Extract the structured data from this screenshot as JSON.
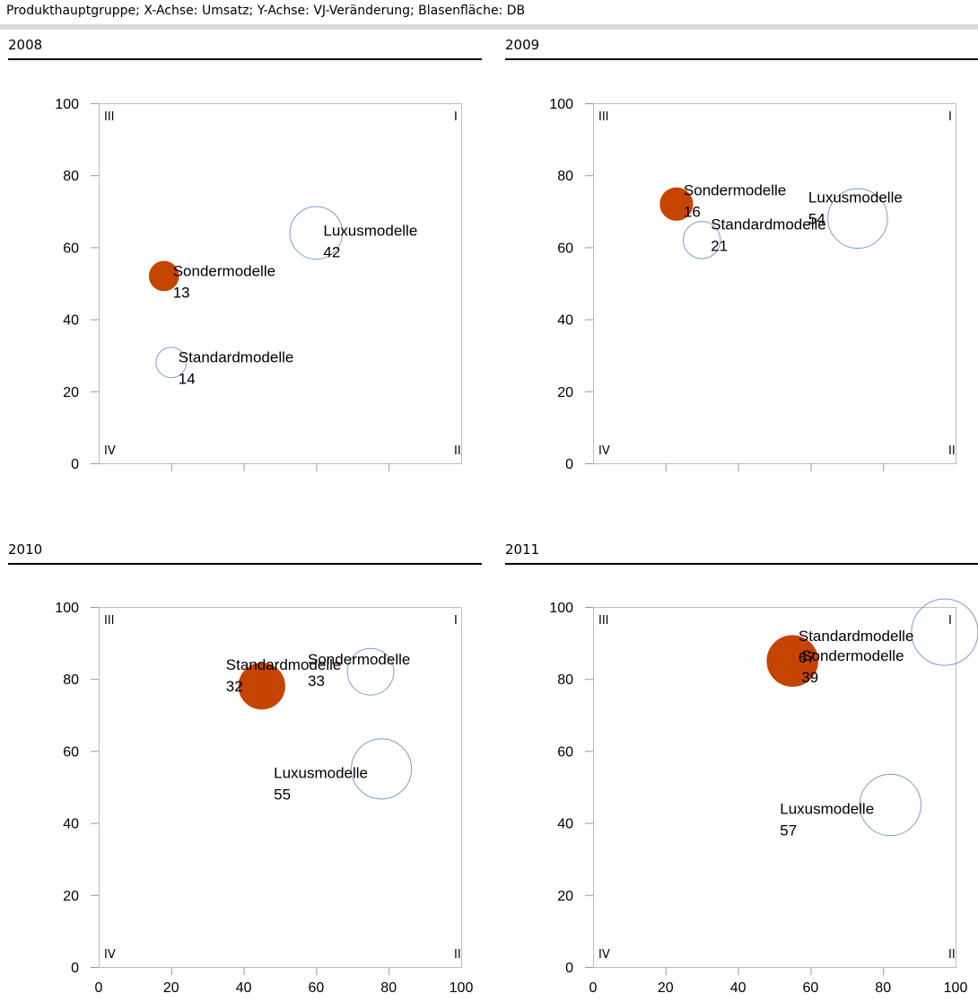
{
  "header": {
    "text": "Produkthauptgruppe; X-Achse: Umsatz; Y-Achse: VJ-Veränderung; Blasenfläche: DB"
  },
  "quadrants": {
    "top_left": "III",
    "top_right": "I",
    "bottom_left": "IV",
    "bottom_right": "II"
  },
  "colors": {
    "filled_bubble": "#c44400",
    "open_bubble": "#7f9cc9",
    "frame": "#bdbdbd"
  },
  "chart_data": [
    {
      "type": "scatter",
      "title": "2008",
      "xlim": [
        0,
        100
      ],
      "ylim": [
        0,
        100
      ],
      "x_ticks": [
        0,
        20,
        40,
        60,
        80,
        100
      ],
      "y_ticks": [
        0,
        20,
        40,
        60,
        80,
        100
      ],
      "points": [
        {
          "label": "Luxusmodelle",
          "value": 42,
          "x": 60,
          "y": 64,
          "filled": false
        },
        {
          "label": "Sondermodelle",
          "value": 13,
          "x": 18,
          "y": 52,
          "filled": true
        },
        {
          "label": "Standardmodelle",
          "value": 14,
          "x": 20,
          "y": 28,
          "filled": false
        }
      ]
    },
    {
      "type": "scatter",
      "title": "2009",
      "xlim": [
        0,
        100
      ],
      "ylim": [
        0,
        100
      ],
      "x_ticks": [
        0,
        20,
        40,
        60,
        80,
        100
      ],
      "y_ticks": [
        0,
        20,
        40,
        60,
        80,
        100
      ],
      "points": [
        {
          "label": "Sondermodelle",
          "value": 16,
          "x": 23,
          "y": 72,
          "filled": true
        },
        {
          "label": "Luxusmodelle",
          "value": 54,
          "x": 73,
          "y": 68,
          "filled": false
        },
        {
          "label": "Standardmodelle",
          "value": 21,
          "x": 30,
          "y": 62,
          "filled": false
        }
      ]
    },
    {
      "type": "scatter",
      "title": "2010",
      "xlim": [
        0,
        100
      ],
      "ylim": [
        0,
        100
      ],
      "x_ticks": [
        0,
        20,
        40,
        60,
        80,
        100
      ],
      "y_ticks": [
        0,
        20,
        40,
        60,
        80,
        100
      ],
      "points": [
        {
          "label": "Sondermodelle",
          "value": 33,
          "x": 75,
          "y": 82,
          "filled": false
        },
        {
          "label": "Standardmodelle",
          "value": 32,
          "x": 45,
          "y": 78,
          "filled": true
        },
        {
          "label": "Luxusmodelle",
          "value": 55,
          "x": 78,
          "y": 55,
          "filled": false
        }
      ]
    },
    {
      "type": "scatter",
      "title": "2011",
      "xlim": [
        0,
        100
      ],
      "ylim": [
        0,
        100
      ],
      "x_ticks": [
        0,
        20,
        40,
        60,
        80,
        100
      ],
      "y_ticks": [
        0,
        20,
        40,
        60,
        80,
        100
      ],
      "points": [
        {
          "label": "Standardmodelle",
          "value": 67,
          "x": 97,
          "y": 93,
          "filled": false
        },
        {
          "label": "Sondermodelle",
          "value": 39,
          "x": 55,
          "y": 85,
          "filled": true
        },
        {
          "label": "Luxusmodelle",
          "value": 57,
          "x": 82,
          "y": 45,
          "filled": false
        }
      ]
    }
  ]
}
